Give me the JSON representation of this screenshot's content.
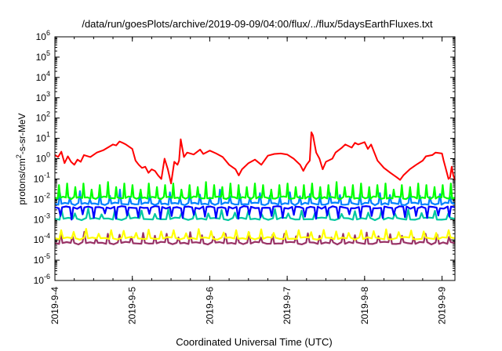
{
  "chart_data": {
    "type": "line",
    "title": "/data/run/goesPlots/archive/2019-09-09/04:00/flux/../flux/5daysEarthFluxes.txt",
    "xlabel": "Coordinated Universal Time (UTC)",
    "ylabel": {
      "base": "protons/cm",
      "sup": "2",
      "rest": "-s-sr-MeV"
    },
    "yscale": "log",
    "ylim": [
      1e-06,
      1000000.0
    ],
    "y_ticks": [
      {
        "value": 1e-06,
        "base": "10",
        "exp": "-6"
      },
      {
        "value": 1e-05,
        "base": "10",
        "exp": "-5"
      },
      {
        "value": 0.0001,
        "base": "10",
        "exp": "-4"
      },
      {
        "value": 0.001,
        "base": "10",
        "exp": "-3"
      },
      {
        "value": 0.01,
        "base": "10",
        "exp": "-2"
      },
      {
        "value": 0.1,
        "base": "10",
        "exp": "-1"
      },
      {
        "value": 1,
        "base": "10",
        "exp": "0"
      },
      {
        "value": 10,
        "base": "10",
        "exp": "1"
      },
      {
        "value": 100,
        "base": "10",
        "exp": "2"
      },
      {
        "value": 1000,
        "base": "10",
        "exp": "3"
      },
      {
        "value": 10000,
        "base": "10",
        "exp": "4"
      },
      {
        "value": 100000,
        "base": "10",
        "exp": "5"
      },
      {
        "value": 1000000,
        "base": "10",
        "exp": "6"
      }
    ],
    "xlim": [
      "2019-09-04T00:00",
      "2019-09-09T04:00"
    ],
    "x_ticks": [
      {
        "label": "2019-9-4",
        "date": "2019-09-04T00:00"
      },
      {
        "label": "2019-9-5",
        "date": "2019-09-05T00:00"
      },
      {
        "label": "2019-9-6",
        "date": "2019-09-06T00:00"
      },
      {
        "label": "2019-9-7",
        "date": "2019-09-07T00:00"
      },
      {
        "label": "2019-9-8",
        "date": "2019-09-08T00:00"
      },
      {
        "label": "2019-9-9",
        "date": "2019-09-09T00:00"
      }
    ],
    "grid": false,
    "legend": "none",
    "series": [
      {
        "color": "#ff0000",
        "points": [
          [
            "2019-09-04T00:00",
            1.5
          ],
          [
            "2019-09-04T01:00",
            1.2
          ],
          [
            "2019-09-04T02:00",
            2.2
          ],
          [
            "2019-09-04T03:00",
            0.6
          ],
          [
            "2019-09-04T04:00",
            1.3
          ],
          [
            "2019-09-04T05:00",
            0.7
          ],
          [
            "2019-09-04T06:00",
            0.5
          ],
          [
            "2019-09-04T07:00",
            0.9
          ],
          [
            "2019-09-04T08:00",
            0.7
          ],
          [
            "2019-09-04T09:00",
            1.5
          ],
          [
            "2019-09-04T11:00",
            1.2
          ],
          [
            "2019-09-04T13:00",
            2.0
          ],
          [
            "2019-09-04T15:00",
            2.6
          ],
          [
            "2019-09-04T17:00",
            4.0
          ],
          [
            "2019-09-04T18:00",
            5.0
          ],
          [
            "2019-09-04T19:00",
            4.5
          ],
          [
            "2019-09-04T20:00",
            7.0
          ],
          [
            "2019-09-04T21:00",
            6.0
          ],
          [
            "2019-09-04T22:00",
            5.0
          ],
          [
            "2019-09-05T00:00",
            3.0
          ],
          [
            "2019-09-05T01:00",
            0.8
          ],
          [
            "2019-09-05T02:00",
            0.5
          ],
          [
            "2019-09-05T03:00",
            0.35
          ],
          [
            "2019-09-05T04:00",
            0.4
          ],
          [
            "2019-09-05T05:00",
            0.2
          ],
          [
            "2019-09-05T06:00",
            0.3
          ],
          [
            "2019-09-05T07:00",
            0.25
          ],
          [
            "2019-09-05T08:00",
            0.15
          ],
          [
            "2019-09-05T09:00",
            0.1
          ],
          [
            "2019-09-05T10:00",
            1.0
          ],
          [
            "2019-09-05T11:00",
            0.3
          ],
          [
            "2019-09-05T12:00",
            0.06
          ],
          [
            "2019-09-05T13:00",
            0.7
          ],
          [
            "2019-09-05T14:00",
            0.5
          ],
          [
            "2019-09-05T14:30",
            0.8
          ],
          [
            "2019-09-05T15:00",
            9.0
          ],
          [
            "2019-09-05T16:00",
            1.2
          ],
          [
            "2019-09-05T17:00",
            2.0
          ],
          [
            "2019-09-05T19:00",
            1.6
          ],
          [
            "2019-09-05T21:00",
            2.8
          ],
          [
            "2019-09-05T22:00",
            1.7
          ],
          [
            "2019-09-06T00:00",
            2.5
          ],
          [
            "2019-09-06T02:00",
            1.8
          ],
          [
            "2019-09-06T04:00",
            1.2
          ],
          [
            "2019-09-06T06:00",
            0.5
          ],
          [
            "2019-09-06T08:00",
            0.3
          ],
          [
            "2019-09-06T09:00",
            0.15
          ],
          [
            "2019-09-06T10:00",
            0.3
          ],
          [
            "2019-09-06T12:00",
            0.6
          ],
          [
            "2019-09-06T14:00",
            0.9
          ],
          [
            "2019-09-06T16:00",
            0.5
          ],
          [
            "2019-09-06T18:00",
            1.4
          ],
          [
            "2019-09-06T20:00",
            1.7
          ],
          [
            "2019-09-06T22:00",
            1.8
          ],
          [
            "2019-09-07T00:00",
            1.6
          ],
          [
            "2019-09-07T02:00",
            1.0
          ],
          [
            "2019-09-07T04:00",
            0.5
          ],
          [
            "2019-09-07T05:00",
            0.25
          ],
          [
            "2019-09-07T06:00",
            0.5
          ],
          [
            "2019-09-07T07:00",
            0.8
          ],
          [
            "2019-09-07T07:30",
            20.0
          ],
          [
            "2019-09-07T08:00",
            14.0
          ],
          [
            "2019-09-07T09:00",
            2.0
          ],
          [
            "2019-09-07T10:00",
            1.0
          ],
          [
            "2019-09-07T11:00",
            0.3
          ],
          [
            "2019-09-07T12:00",
            0.7
          ],
          [
            "2019-09-07T14:00",
            1.0
          ],
          [
            "2019-09-07T15:00",
            2.0
          ],
          [
            "2019-09-07T17:00",
            3.5
          ],
          [
            "2019-09-07T18:00",
            5.0
          ],
          [
            "2019-09-07T20:00",
            3.5
          ],
          [
            "2019-09-07T21:00",
            6.0
          ],
          [
            "2019-09-07T22:00",
            5.0
          ],
          [
            "2019-09-08T00:00",
            6.5
          ],
          [
            "2019-09-08T01:00",
            3.0
          ],
          [
            "2019-09-08T02:00",
            5.0
          ],
          [
            "2019-09-08T04:00",
            0.8
          ],
          [
            "2019-09-08T06:00",
            0.35
          ],
          [
            "2019-09-08T08:00",
            0.2
          ],
          [
            "2019-09-08T10:00",
            0.12
          ],
          [
            "2019-09-08T11:00",
            0.09
          ],
          [
            "2019-09-08T12:00",
            0.15
          ],
          [
            "2019-09-08T14:00",
            0.3
          ],
          [
            "2019-09-08T16:00",
            0.5
          ],
          [
            "2019-09-08T18:00",
            0.8
          ],
          [
            "2019-09-08T19:00",
            1.3
          ],
          [
            "2019-09-08T21:00",
            1.5
          ],
          [
            "2019-09-08T22:00",
            2.0
          ],
          [
            "2019-09-09T00:00",
            1.8
          ],
          [
            "2019-09-09T00:30",
            0.8
          ],
          [
            "2019-09-09T01:00",
            0.4
          ],
          [
            "2019-09-09T02:00",
            0.1
          ],
          [
            "2019-09-09T02:30",
            0.12
          ],
          [
            "2019-09-09T03:00",
            0.4
          ],
          [
            "2019-09-09T03:30",
            0.15
          ],
          [
            "2019-09-09T04:00",
            0.09
          ]
        ]
      },
      {
        "color": "#00ff00",
        "base": 0.012,
        "spikes": [
          0.05,
          0.06,
          0.04,
          0.06,
          0.03,
          0.05,
          0.07,
          0.04,
          0.06,
          0.05,
          0.03,
          0.06,
          0.04,
          0.05,
          0.06,
          0.03,
          0.05,
          0.04,
          0.07,
          0.05,
          0.04,
          0.06,
          0.05,
          0.04,
          0.06,
          0.05,
          0.03,
          0.05,
          0.06,
          0.04,
          0.05,
          0.06,
          0.04,
          0.05,
          0.07,
          0.04,
          0.05,
          0.06,
          0.04,
          0.05,
          0.06,
          0.03,
          0.05,
          0.04,
          0.06,
          0.05,
          0.04,
          0.05,
          0.06
        ]
      },
      {
        "color": "#0080ff",
        "base": 0.006,
        "spikes": [
          0.02,
          0.012,
          0.025,
          0.01,
          0.018,
          0.015,
          0.03,
          0.012,
          0.02,
          0.016,
          0.011,
          0.022,
          0.013,
          0.02,
          0.017,
          0.012,
          0.03,
          0.014,
          0.018,
          0.012,
          0.02,
          0.015,
          0.012,
          0.022,
          0.014,
          0.018,
          0.013,
          0.02,
          0.016,
          0.012,
          0.018,
          0.014,
          0.02,
          0.016,
          0.012,
          0.02,
          0.015,
          0.013,
          0.018,
          0.014
        ]
      },
      {
        "color": "#0000ff",
        "base": 0.004,
        "dips": [
          0.0015,
          0.001,
          0.0018,
          0.0012,
          0.002,
          0.0011,
          0.0016,
          0.0013,
          0.0019,
          0.0011,
          0.0015,
          0.0012,
          0.0017,
          0.0014,
          0.0012,
          0.0016,
          0.0011,
          0.0018,
          0.0013,
          0.0015,
          0.0012,
          0.0017,
          0.0014,
          0.0011,
          0.0016,
          0.0012,
          0.0018,
          0.0013,
          0.0015,
          0.0012,
          0.0017,
          0.0013,
          0.0015,
          0.0012,
          0.0016,
          0.0014
        ]
      },
      {
        "color": "#00c8a0",
        "base": 0.0011,
        "spikes": [
          0.003,
          0.002,
          0.0035,
          0.0018,
          0.003,
          0.0022,
          0.0028,
          0.0019,
          0.0032,
          0.0021,
          0.0026,
          0.002,
          0.003,
          0.0022,
          0.0027,
          0.0019,
          0.0033,
          0.002,
          0.0028,
          0.0021,
          0.003,
          0.0019,
          0.0026,
          0.0022,
          0.0029,
          0.002,
          0.0031,
          0.0021,
          0.0027,
          0.002
        ]
      },
      {
        "color": "#ffff00",
        "base": 0.00012,
        "spikes": [
          0.0003,
          0.00025,
          0.00035,
          0.0002,
          0.0003,
          0.00028,
          0.00022,
          0.00032,
          0.00026,
          0.0003,
          0.00021,
          0.00034,
          0.00027,
          0.00023,
          0.0003,
          0.00025,
          0.00033,
          0.00022,
          0.00028,
          0.0003,
          0.00024,
          0.00031,
          0.00026,
          0.00022,
          0.0003,
          0.00027,
          0.00033,
          0.00024,
          0.00029,
          0.00026,
          0.00022,
          0.0003
        ]
      },
      {
        "color": "#993366",
        "base": 7e-05,
        "spikes": [
          0.0002,
          0.00015,
          0.00025,
          0.00012,
          0.0002,
          0.00018,
          0.00014,
          0.00022,
          0.00016,
          0.0002,
          0.00013,
          0.00024,
          0.00017,
          0.00014,
          0.0002,
          0.00016,
          0.00023,
          0.00013,
          0.00018,
          0.0002,
          0.00015,
          0.00021,
          0.00016,
          0.00013,
          0.0002,
          0.00017,
          0.00023,
          0.00015,
          0.00019,
          0.00016,
          0.00013,
          0.0002,
          0.00018,
          0.00014
        ]
      }
    ]
  }
}
